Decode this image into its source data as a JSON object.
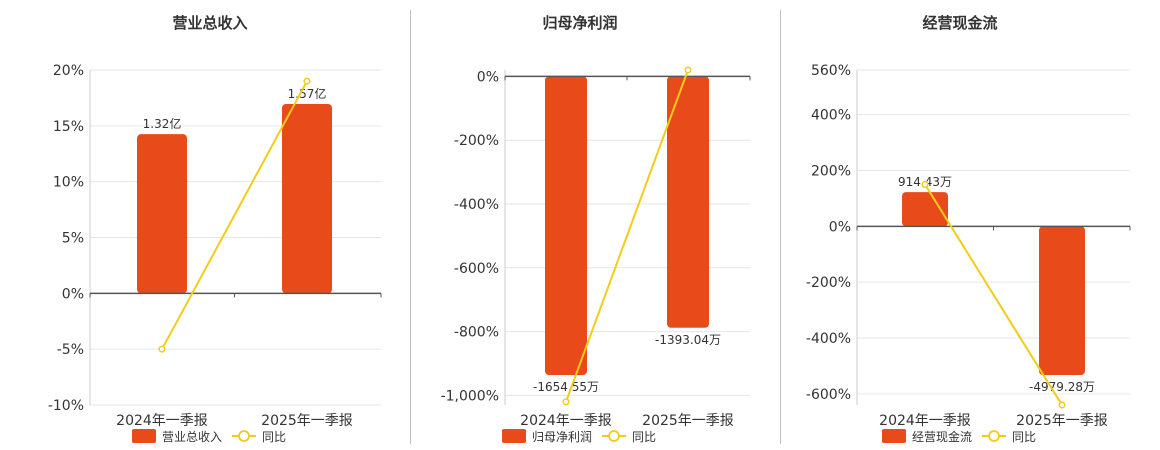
{
  "colors": {
    "bar": "#E84A1A",
    "line": "#F2CC1B",
    "axis": "#555555",
    "grid": "#e6e6e6",
    "title": "#333333"
  },
  "chart_data": [
    {
      "type": "bar",
      "title": "营业总收入",
      "categories": [
        "2024年一季报",
        "2025年一季报"
      ],
      "bar_series": {
        "name": "营业总收入",
        "labels": [
          "1.32亿",
          "1.57亿"
        ],
        "values": [
          1.32,
          1.57
        ],
        "unit": "亿"
      },
      "line_series": {
        "name": "同比",
        "values": [
          -5,
          19
        ]
      },
      "y_ticks": [
        "20%",
        "15%",
        "10%",
        "5%",
        "0%",
        "-5%",
        "-10%"
      ],
      "ylim": [
        -10,
        20
      ],
      "grid": true,
      "legend": "bottom"
    },
    {
      "type": "bar",
      "title": "归母净利润",
      "categories": [
        "2024年一季报",
        "2025年一季报"
      ],
      "bar_series": {
        "name": "归母净利润",
        "labels": [
          "-1654.55万",
          "-1393.04万"
        ],
        "values": [
          -1654.55,
          -1393.04
        ],
        "unit": "万"
      },
      "line_series": {
        "name": "同比",
        "values": [
          -1020,
          20
        ]
      },
      "y_ticks": [
        "0%",
        "-200%",
        "-400%",
        "-600%",
        "-800%",
        "-1,000%"
      ],
      "ylim": [
        -1030,
        20
      ],
      "grid": true,
      "legend": "bottom"
    },
    {
      "type": "bar",
      "title": "经营现金流",
      "categories": [
        "2024年一季报",
        "2025年一季报"
      ],
      "bar_series": {
        "name": "经营现金流",
        "labels": [
          "914.43万",
          "-4979.28万"
        ],
        "values": [
          914.43,
          -4979.28
        ],
        "unit": "万"
      },
      "line_series": {
        "name": "同比",
        "values": [
          150,
          -640
        ]
      },
      "y_ticks": [
        "560%",
        "400%",
        "200%",
        "0%",
        "-200%",
        "-400%",
        "-600%"
      ],
      "ylim": [
        -640,
        560
      ],
      "grid": true,
      "legend": "bottom"
    }
  ]
}
